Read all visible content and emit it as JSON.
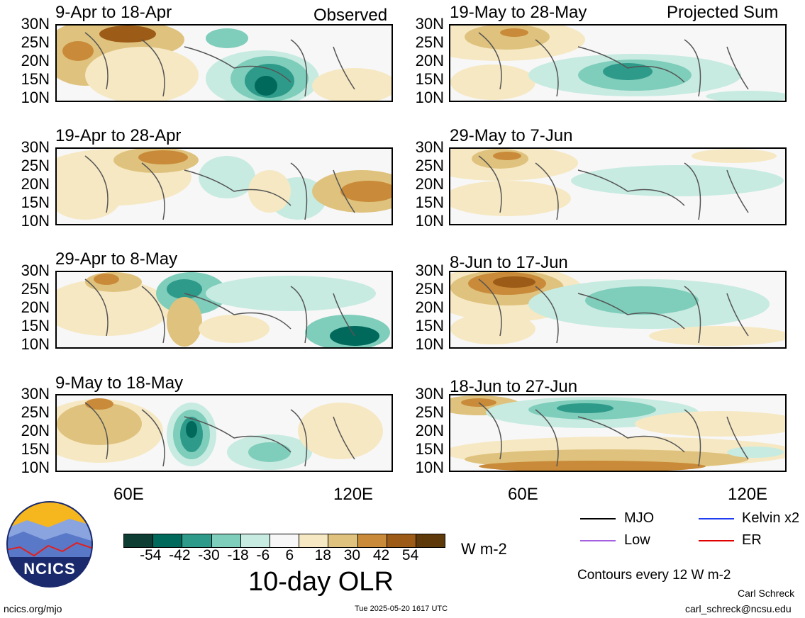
{
  "panels": [
    {
      "title": "9-Apr to 18-Apr",
      "tag": "Observed"
    },
    {
      "title": "19-Apr to 28-Apr",
      "tag": ""
    },
    {
      "title": "29-Apr to 8-May",
      "tag": ""
    },
    {
      "title": "9-May to 18-May",
      "tag": ""
    },
    {
      "title": "19-May to 28-May",
      "tag": "Projected Sum"
    },
    {
      "title": "29-May to 7-Jun",
      "tag": ""
    },
    {
      "title": "8-Jun to 17-Jun",
      "tag": ""
    },
    {
      "title": "18-Jun to 27-Jun",
      "tag": ""
    }
  ],
  "lat_labels": [
    "30N",
    "25N",
    "20N",
    "15N",
    "10N"
  ],
  "lon_labels": [
    "60E",
    "120E"
  ],
  "colorbar": {
    "colors": [
      "#0d3d33",
      "#00695c",
      "#2e9a8a",
      "#7fcdbb",
      "#c7ebe1",
      "#f7f7f7",
      "#f6e8c3",
      "#dfc27d",
      "#c98b39",
      "#9c5b16",
      "#5e3a0b"
    ],
    "ticks": [
      "-54",
      "-42",
      "-30",
      "-18",
      "-6",
      "6",
      "18",
      "30",
      "42",
      "54"
    ],
    "unit": "W m-2",
    "title": "10-day OLR"
  },
  "legend": {
    "mjo": "MJO",
    "kelvin": "Kelvin x2",
    "low": "Low",
    "er": "ER",
    "colors": {
      "mjo": "#000000",
      "kelvin": "#1f3df0",
      "low": "#a560e0",
      "er": "#e00000"
    }
  },
  "contour_note": "Contours every 12 W m-2",
  "logo_text": "NCICS",
  "footer": {
    "url": "ncics.org/mjo",
    "timestamp": "Tue 2025-05-20 1617 UTC",
    "author": "Carl Schreck",
    "email": "carl_schreck@ncsu.edu"
  }
}
